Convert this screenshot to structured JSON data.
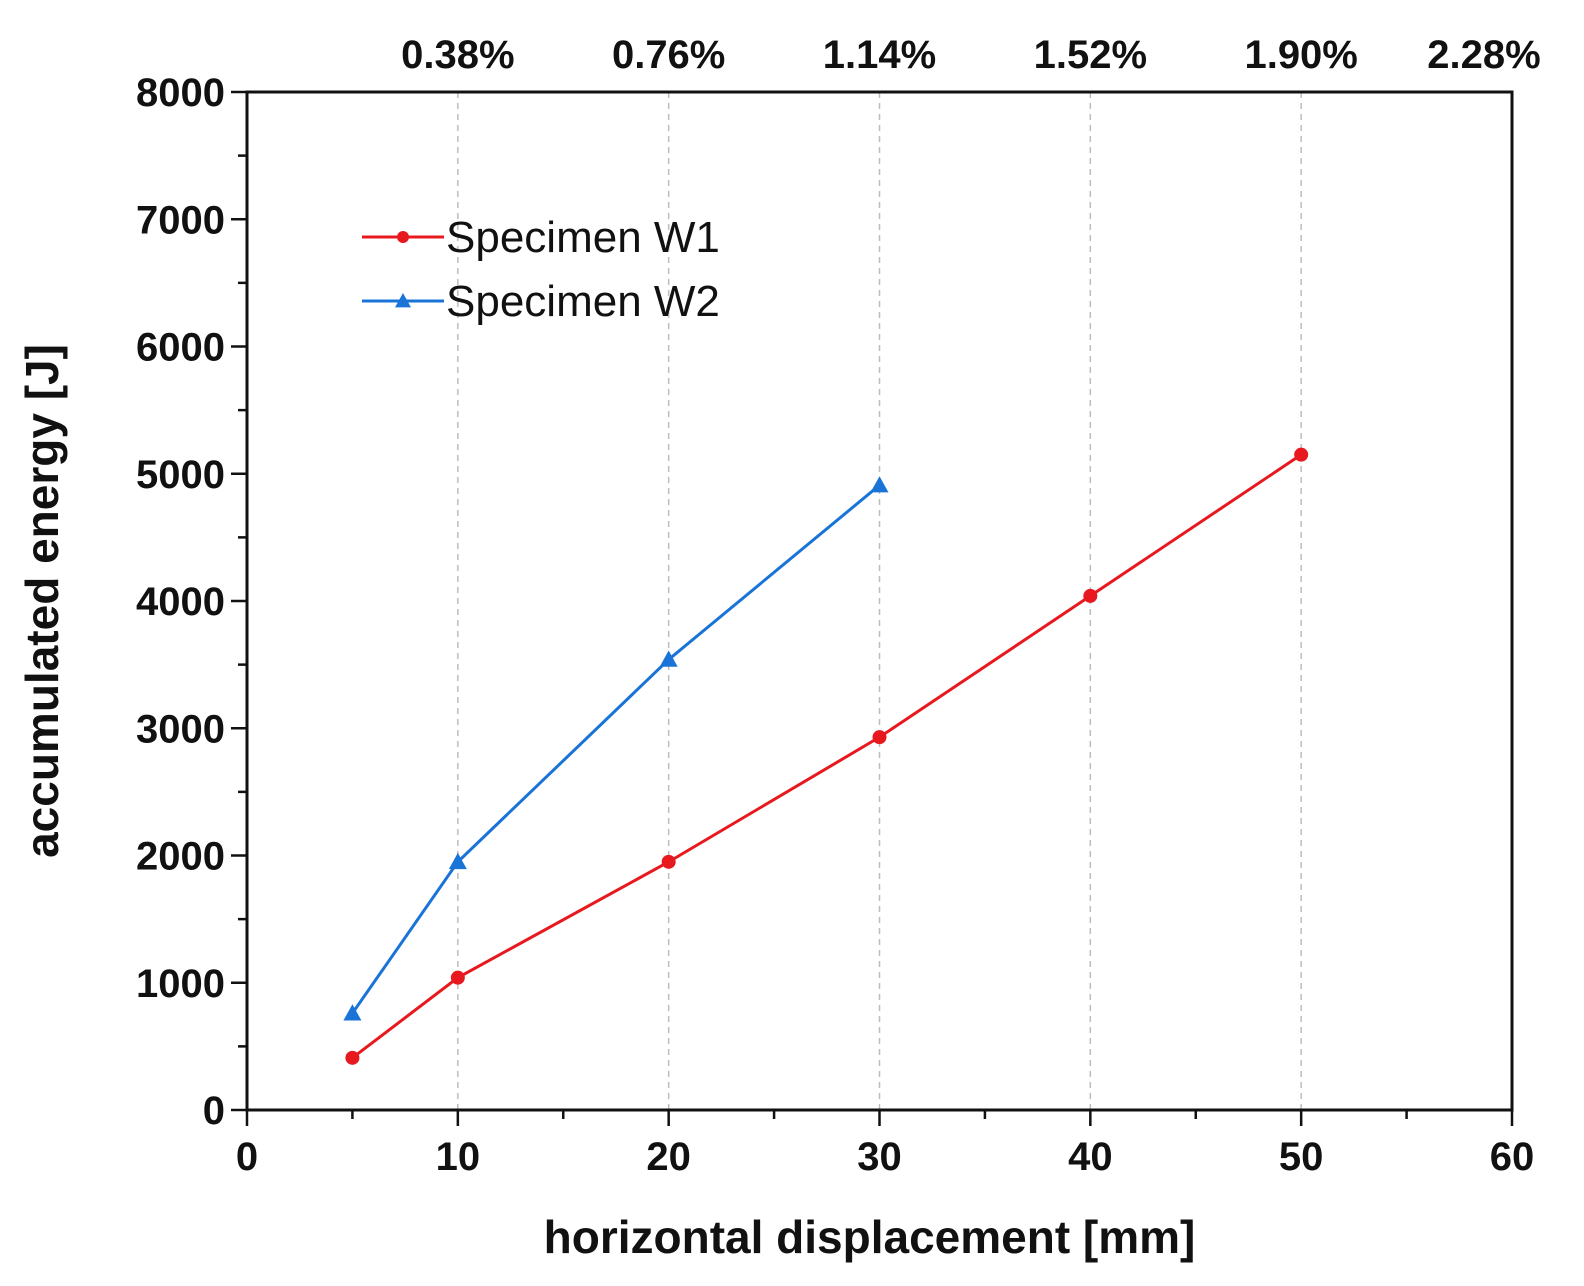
{
  "chart_data": {
    "type": "line",
    "title": "",
    "xlabel": "horizontal displacement [mm]",
    "ylabel": "accumulated energy [J]",
    "xlim": [
      0,
      60
    ],
    "ylim": [
      0,
      8000
    ],
    "x_ticks": [
      0,
      10,
      20,
      30,
      40,
      50,
      60
    ],
    "y_ticks": [
      0,
      1000,
      2000,
      3000,
      4000,
      5000,
      6000,
      7000,
      8000
    ],
    "x_tick_labels": [
      "0",
      "10",
      "20",
      "30",
      "40",
      "50",
      "60"
    ],
    "y_tick_labels": [
      "0",
      "1000",
      "2000",
      "3000",
      "4000",
      "5000",
      "6000",
      "7000",
      "8000"
    ],
    "top_axis": {
      "positions": [
        10,
        20,
        30,
        40,
        50,
        60
      ],
      "labels": [
        "0.38%",
        "0.76%",
        "1.14%",
        "1.52%",
        "1.90%",
        "2.28%"
      ]
    },
    "grid": "vertical dashed at top-axis positions",
    "legend_position": "top-left",
    "series": [
      {
        "name": "Specimen W1",
        "color": "#e8191e",
        "marker": "circle",
        "x": [
          5,
          10,
          20,
          30,
          40,
          50
        ],
        "y": [
          410,
          1040,
          1950,
          2930,
          4040,
          5150
        ]
      },
      {
        "name": "Specimen W2",
        "color": "#1a74d8",
        "marker": "triangle",
        "x": [
          5,
          10,
          20,
          30
        ],
        "y": [
          760,
          1950,
          3540,
          4910
        ]
      }
    ]
  }
}
